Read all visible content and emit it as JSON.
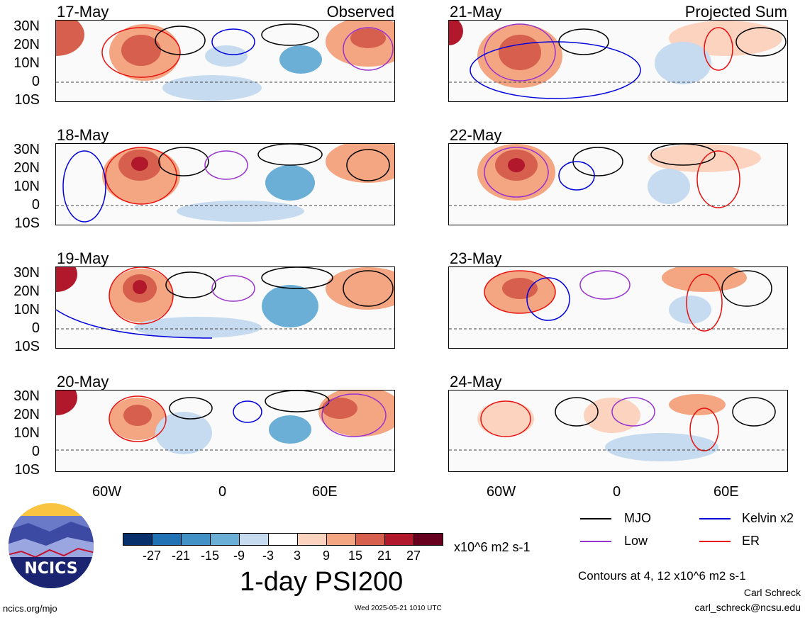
{
  "left_header": "Observed",
  "right_header": "Projected Sum",
  "left_dates": [
    "17-May",
    "18-May",
    "19-May",
    "20-May"
  ],
  "right_dates": [
    "21-May",
    "22-May",
    "23-May",
    "24-May"
  ],
  "lat_labels": [
    "30N",
    "20N",
    "10N",
    "0",
    "10S"
  ],
  "lon_labels": [
    "60W",
    "0",
    "60E"
  ],
  "legend": {
    "mjo": {
      "label": "MJO",
      "color": "#000000"
    },
    "kelvin": {
      "label": "Kelvin x2",
      "color": "#0000dd"
    },
    "low": {
      "label": "Low",
      "color": "#9932cc"
    },
    "er": {
      "label": "ER",
      "color": "#e8100e"
    }
  },
  "colorbar": {
    "ticks": [
      "-27",
      "-21",
      "-15",
      "-9",
      "-3",
      "3",
      "9",
      "15",
      "21",
      "27"
    ],
    "colors": [
      "#08306b",
      "#2171b5",
      "#4292c6",
      "#6baed6",
      "#c6dbef",
      "#ffffff",
      "#fcd3bf",
      "#f4a582",
      "#d6604d",
      "#b2182b",
      "#67001f"
    ],
    "units": "x10^6 m2 s-1"
  },
  "main_title": "1-day PSI200",
  "contour_note": "Contours at 4, 12 x10^6 m2 s-1",
  "author": "Carl Schreck",
  "email": "carl_schreck@ncsu.edu",
  "site": "ncics.org/mjo",
  "timestamp": "Wed 2025-05-21 1010 UTC",
  "logo_text": "NCICS"
}
